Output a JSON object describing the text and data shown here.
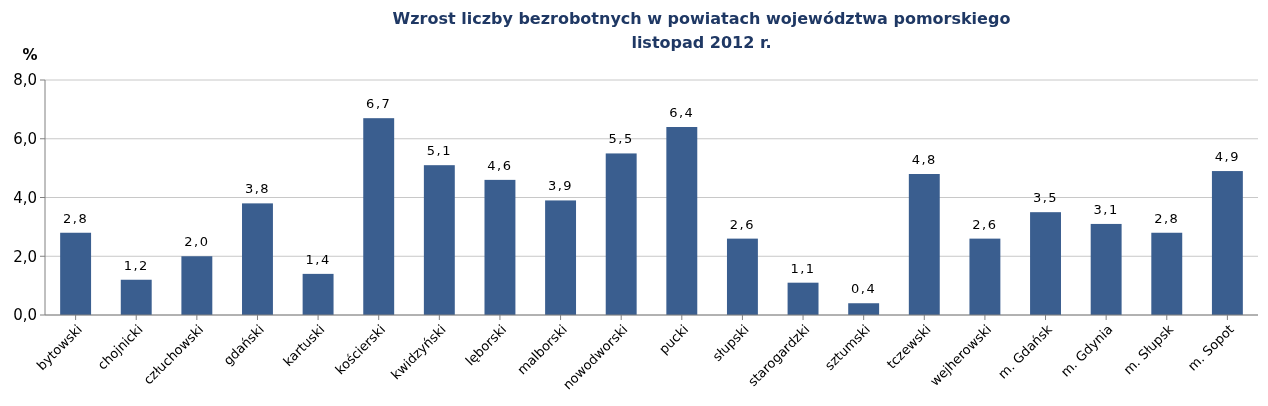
{
  "chart_data": {
    "type": "bar",
    "title": "Wzrost liczby bezrobotnych w powiatach województwa pomorskiego\nlistopad 2012 r.",
    "ylabel": "%",
    "categories": [
      "bytowski",
      "chojnicki",
      "człuchowski",
      "gdański",
      "kartuski",
      "kościerski",
      "kwidzyński",
      "lęborski",
      "malborski",
      "nowodworski",
      "pucki",
      "słupski",
      "starogardzki",
      "sztumski",
      "tczewski",
      "wejherowski",
      "m. Gdańsk",
      "m. Gdynia",
      "m. Słupsk",
      "m. Sopot"
    ],
    "values": [
      2.8,
      1.2,
      2.0,
      3.8,
      1.4,
      6.7,
      5.1,
      4.6,
      3.9,
      5.5,
      6.4,
      2.6,
      1.1,
      0.4,
      4.8,
      2.6,
      3.5,
      3.1,
      2.8,
      4.9
    ],
    "value_labels": [
      "2,8",
      "1,2",
      "2,0",
      "3,8",
      "1,4",
      "6,7",
      "5,1",
      "4,6",
      "3,9",
      "5,5",
      "6,4",
      "2,6",
      "1,1",
      "0,4",
      "4,8",
      "2,6",
      "3,5",
      "3,1",
      "2,8",
      "4,9"
    ],
    "color": "#3a5e8f",
    "ylim": [
      0,
      8
    ],
    "yticks": [
      {
        "value": 0,
        "label": "0,0"
      },
      {
        "value": 2,
        "label": "2,0"
      },
      {
        "value": 4,
        "label": "4,0"
      },
      {
        "value": 6,
        "label": "6,0"
      },
      {
        "value": 8,
        "label": "8,0"
      }
    ],
    "grid": "y"
  }
}
